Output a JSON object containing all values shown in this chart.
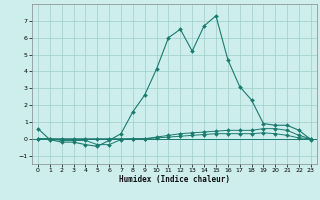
{
  "xlabel": "Humidex (Indice chaleur)",
  "x": [
    0,
    1,
    2,
    3,
    4,
    5,
    6,
    7,
    8,
    9,
    10,
    11,
    12,
    13,
    14,
    15,
    16,
    17,
    18,
    19,
    20,
    21,
    22,
    23
  ],
  "y_main": [
    0.6,
    -0.05,
    -0.2,
    -0.2,
    -0.35,
    -0.45,
    -0.1,
    0.3,
    1.6,
    2.6,
    4.15,
    6.0,
    6.5,
    5.2,
    6.7,
    7.3,
    4.7,
    3.1,
    2.3,
    0.9,
    0.8,
    0.8,
    0.5,
    -0.05
  ],
  "y_flat1": [
    0.0,
    0.0,
    -0.1,
    -0.1,
    -0.1,
    -0.35,
    -0.35,
    -0.05,
    0.0,
    0.0,
    0.1,
    0.2,
    0.3,
    0.35,
    0.4,
    0.45,
    0.5,
    0.5,
    0.5,
    0.6,
    0.6,
    0.5,
    0.2,
    0.0
  ],
  "y_flat2": [
    0.0,
    0.0,
    0.0,
    0.0,
    0.0,
    0.0,
    0.0,
    0.0,
    0.0,
    0.0,
    0.05,
    0.1,
    0.15,
    0.2,
    0.25,
    0.3,
    0.3,
    0.3,
    0.3,
    0.35,
    0.3,
    0.2,
    0.05,
    0.0
  ],
  "line_color": "#1a7a6e",
  "bg_color": "#cdeeed",
  "grid_color": "#9ecece",
  "ylim": [
    -1.5,
    8.0
  ],
  "xlim": [
    -0.5,
    23.5
  ],
  "yticks": [
    -1,
    0,
    1,
    2,
    3,
    4,
    5,
    6,
    7
  ],
  "xticks": [
    0,
    1,
    2,
    3,
    4,
    5,
    6,
    7,
    8,
    9,
    10,
    11,
    12,
    13,
    14,
    15,
    16,
    17,
    18,
    19,
    20,
    21,
    22,
    23
  ]
}
